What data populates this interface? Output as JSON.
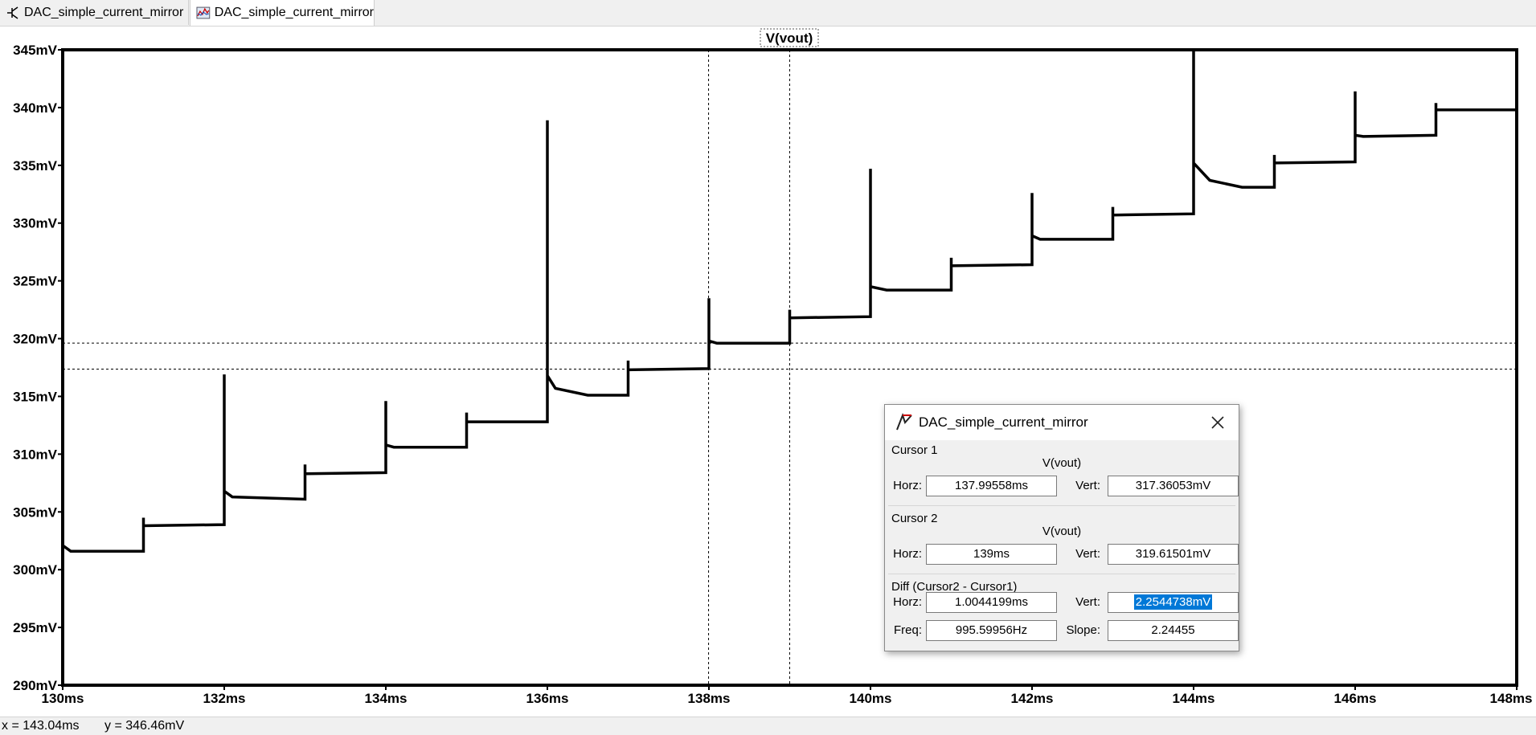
{
  "tabs": [
    {
      "label": "DAC_simple_current_mirror",
      "icon": "schematic-icon",
      "active": false
    },
    {
      "label": "DAC_simple_current_mirror",
      "icon": "waveform-icon",
      "active": true
    }
  ],
  "plot": {
    "trace_label": "V(vout)"
  },
  "chart_data": {
    "type": "line",
    "title": "V(vout)",
    "xlabel": "",
    "ylabel": "",
    "xlim": [
      130,
      148
    ],
    "ylim": [
      290,
      345
    ],
    "x_ticks": [
      "130ms",
      "132ms",
      "134ms",
      "136ms",
      "138ms",
      "140ms",
      "142ms",
      "144ms",
      "146ms",
      "148ms"
    ],
    "y_ticks": [
      "345mV",
      "340mV",
      "335mV",
      "330mV",
      "325mV",
      "320mV",
      "315mV",
      "310mV",
      "305mV",
      "300mV",
      "295mV",
      "290mV"
    ],
    "series": [
      {
        "name": "V(vout)",
        "color": "#000000",
        "points": [
          [
            130,
            302.1
          ],
          [
            130.1,
            301.6
          ],
          [
            131,
            301.6
          ],
          [
            131,
            304.5
          ],
          [
            131,
            303.8
          ],
          [
            132,
            303.9
          ],
          [
            132,
            316.9
          ],
          [
            132,
            306.8
          ],
          [
            132.1,
            306.3
          ],
          [
            133,
            306.1
          ],
          [
            133,
            309.1
          ],
          [
            133,
            308.3
          ],
          [
            134,
            308.4
          ],
          [
            134,
            314.6
          ],
          [
            134,
            310.8
          ],
          [
            134.1,
            310.6
          ],
          [
            135,
            310.6
          ],
          [
            135,
            313.6
          ],
          [
            135,
            312.8
          ],
          [
            136,
            312.8
          ],
          [
            136,
            338.9
          ],
          [
            136,
            316.8
          ],
          [
            136.1,
            315.7
          ],
          [
            136.5,
            315.1
          ],
          [
            137,
            315.1
          ],
          [
            137,
            318.1
          ],
          [
            137,
            317.3
          ],
          [
            138,
            317.4
          ],
          [
            138,
            323.5
          ],
          [
            138,
            319.8
          ],
          [
            138.1,
            319.6
          ],
          [
            139,
            319.6
          ],
          [
            139,
            322.5
          ],
          [
            139,
            321.8
          ],
          [
            140,
            321.9
          ],
          [
            140,
            334.7
          ],
          [
            140,
            324.5
          ],
          [
            140.2,
            324.2
          ],
          [
            141,
            324.2
          ],
          [
            141,
            327.0
          ],
          [
            141,
            326.3
          ],
          [
            142,
            326.4
          ],
          [
            142,
            332.6
          ],
          [
            142,
            328.9
          ],
          [
            142.1,
            328.6
          ],
          [
            143,
            328.6
          ],
          [
            143,
            331.4
          ],
          [
            143,
            330.7
          ],
          [
            144,
            330.8
          ],
          [
            144,
            346.5
          ],
          [
            144,
            335.2
          ],
          [
            144.2,
            333.7
          ],
          [
            144.6,
            333.1
          ],
          [
            145,
            333.1
          ],
          [
            145,
            335.9
          ],
          [
            145,
            335.2
          ],
          [
            146,
            335.3
          ],
          [
            146,
            341.4
          ],
          [
            146,
            337.6
          ],
          [
            146.1,
            337.5
          ],
          [
            147,
            337.6
          ],
          [
            147,
            340.4
          ],
          [
            147,
            339.8
          ],
          [
            148,
            339.8
          ]
        ]
      }
    ],
    "cursors": {
      "vertical_x": [
        137.99558,
        139
      ],
      "horizontal_y": [
        317.36053,
        319.61501
      ]
    },
    "grid": false
  },
  "cursor_dialog": {
    "title": "DAC_simple_current_mirror",
    "cursor1": {
      "heading": "Cursor 1",
      "trace": "V(vout)",
      "horz_label": "Horz:",
      "horz": "137.99558ms",
      "vert_label": "Vert:",
      "vert": "317.36053mV"
    },
    "cursor2": {
      "heading": "Cursor 2",
      "trace": "V(vout)",
      "horz_label": "Horz:",
      "horz": "139ms",
      "vert_label": "Vert:",
      "vert": "319.61501mV"
    },
    "diff": {
      "heading": "Diff (Cursor2 - Cursor1)",
      "horz_label": "Horz:",
      "horz": "1.0044199ms",
      "vert_label": "Vert:",
      "vert": "2.2544738mV",
      "freq_label": "Freq:",
      "freq": "995.59956Hz",
      "slope_label": "Slope:",
      "slope": "2.24455"
    }
  },
  "status": {
    "x_readout": "x = 143.04ms",
    "y_readout": "y = 346.46mV"
  }
}
